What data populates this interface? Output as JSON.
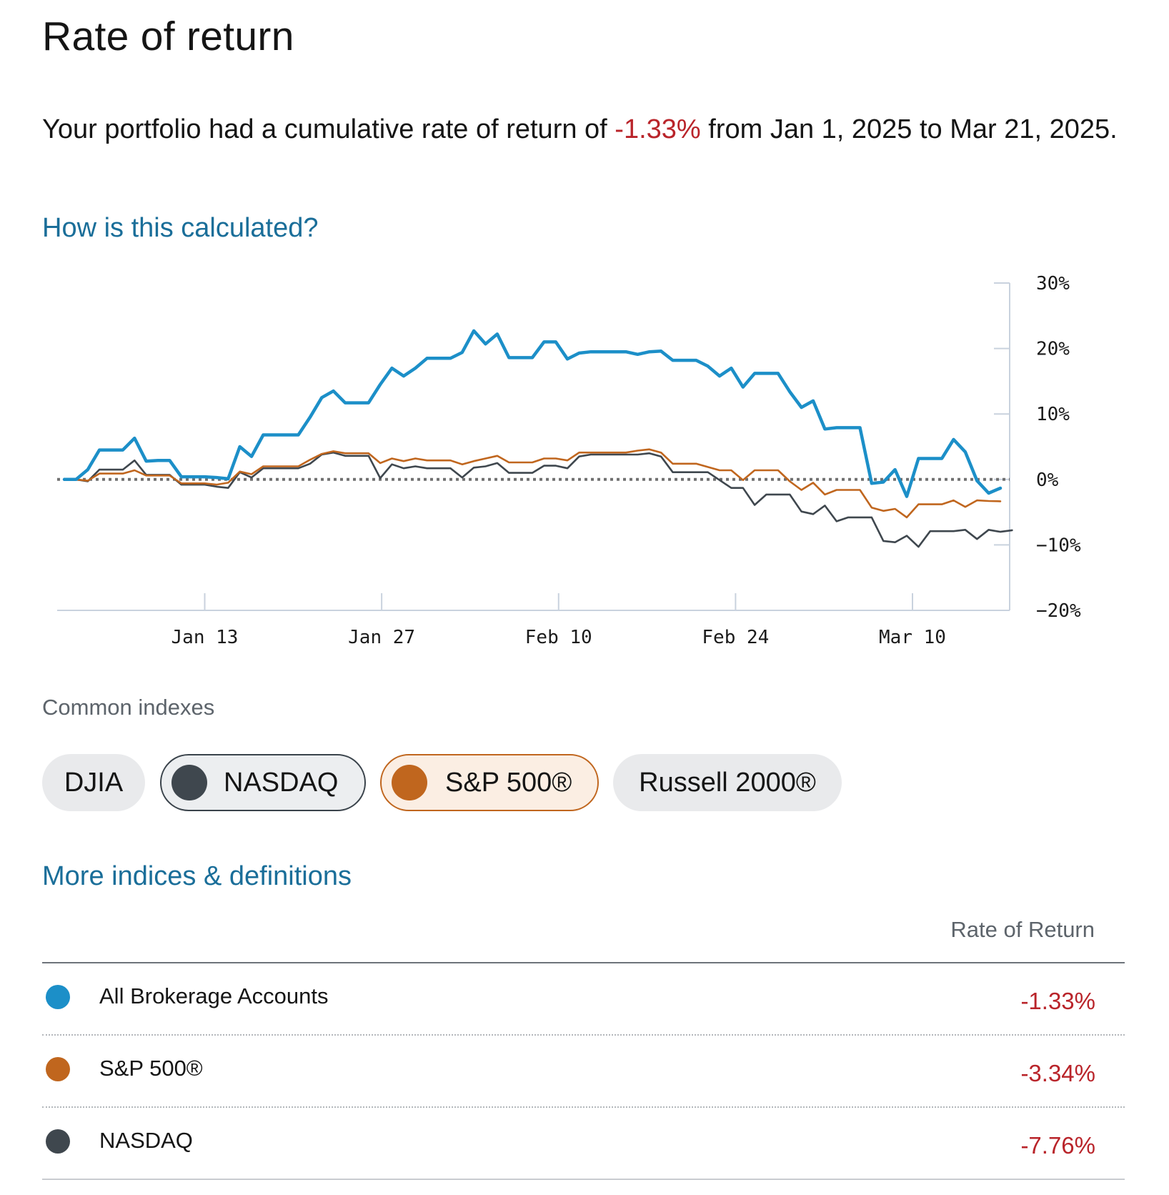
{
  "header": {
    "title": "Rate of return",
    "summary_pre": "Your portfolio had a cumulative rate of return of ",
    "summary_value": "-1.33%",
    "summary_post": " from Jan 1, 2025 to Mar 21, 2025.",
    "calc_link": "How is this calculated?"
  },
  "chart_data": {
    "type": "line",
    "x_ticks": [
      "Jan 13",
      "Jan 27",
      "Feb 10",
      "Feb 24",
      "Mar 10"
    ],
    "y_ticks": [
      "30%",
      "20%",
      "10%",
      "0%",
      "−10%",
      "−20%"
    ],
    "ylim": [
      -20,
      30
    ],
    "grid": false,
    "baseline": 0,
    "series": [
      {
        "name": "All Brokerage Accounts",
        "color": "#1c8fc8",
        "values": [
          0,
          0,
          1.5,
          4.5,
          4.5,
          4.5,
          6.3,
          2.8,
          2.9,
          2.9,
          0.4,
          0.4,
          0.4,
          0.3,
          0.1,
          5,
          3.5,
          6.8,
          6.8,
          6.8,
          6.8,
          9.5,
          12.5,
          13.5,
          11.7,
          11.7,
          11.7,
          14.5,
          17,
          15.8,
          17,
          18.5,
          18.5,
          18.5,
          19.4,
          22.7,
          20.7,
          22.2,
          18.6,
          18.6,
          18.6,
          21,
          21,
          18.4,
          19.3,
          19.5,
          19.5,
          19.5,
          19.5,
          19.1,
          19.5,
          19.6,
          18.2,
          18.2,
          18.2,
          17.3,
          15.8,
          17,
          14.1,
          16.2,
          16.2,
          16.2,
          13.4,
          11,
          12,
          7.7,
          7.9,
          7.9,
          7.9,
          -0.6,
          -0.4,
          1.5,
          -2.6,
          3.2,
          3.2,
          3.2,
          6.1,
          4.2,
          -0.2,
          -2.1,
          -1.33
        ]
      },
      {
        "name": "S&P 500®",
        "color": "#c0661e",
        "values": [
          0,
          0,
          -0.2,
          0.9,
          0.9,
          0.9,
          1.4,
          0.6,
          0.6,
          0.6,
          -0.6,
          -0.6,
          -0.6,
          -0.8,
          -0.5,
          1.2,
          0.8,
          2,
          2,
          2,
          2,
          3,
          3.9,
          4.3,
          4,
          4,
          4,
          2.5,
          3.2,
          2.8,
          3.2,
          2.9,
          2.9,
          2.9,
          2.3,
          2.8,
          3.2,
          3.6,
          2.6,
          2.6,
          2.6,
          3.2,
          3.2,
          2.9,
          4.1,
          4.1,
          4.1,
          4.1,
          4.1,
          4.4,
          4.6,
          4.1,
          2.4,
          2.4,
          2.4,
          1.9,
          1.4,
          1.4,
          -0.1,
          1.4,
          1.4,
          1.4,
          -0.3,
          -1.6,
          -0.5,
          -2.3,
          -1.6,
          -1.6,
          -1.6,
          -4.3,
          -4.8,
          -4.5,
          -5.8,
          -3.8,
          -3.8,
          -3.8,
          -3.2,
          -4.2,
          -3.2,
          -3.3,
          -3.34
        ]
      },
      {
        "name": "NASDAQ",
        "color": "#3f474e",
        "values": [
          0,
          0,
          -0.3,
          1.5,
          1.5,
          1.5,
          2.9,
          0.7,
          0.7,
          0.7,
          -0.8,
          -0.8,
          -0.8,
          -1.1,
          -1.3,
          1.1,
          0.3,
          1.7,
          1.7,
          1.7,
          1.7,
          2.4,
          3.8,
          4.1,
          3.6,
          3.6,
          3.6,
          0.2,
          2.3,
          1.7,
          2,
          1.7,
          1.7,
          1.7,
          0.3,
          1.8,
          2,
          2.5,
          1,
          1,
          1,
          2.1,
          2.1,
          1.7,
          3.5,
          3.8,
          3.8,
          3.8,
          3.8,
          3.8,
          4,
          3.5,
          1.1,
          1.1,
          1.1,
          1.1,
          -0.1,
          -1.3,
          -1.3,
          -3.9,
          -2.3,
          -2.3,
          -2.3,
          -4.9,
          -5.3,
          -4,
          -6.4,
          -5.8,
          -5.8,
          -5.8,
          -9.4,
          -9.6,
          -8.6,
          -10.3,
          -7.9,
          -7.9,
          -7.9,
          -7.7,
          -9.1,
          -7.7,
          -8,
          -7.76
        ]
      }
    ]
  },
  "indexes": {
    "label": "Common indexes",
    "chips": [
      {
        "label": "DJIA",
        "selected": false
      },
      {
        "label": "NASDAQ",
        "selected": true,
        "color": "#3f474e"
      },
      {
        "label": "S&P 500®",
        "selected": true,
        "color": "#c0661e"
      },
      {
        "label": "Russell 2000®",
        "selected": false
      }
    ],
    "more_link": "More indices & definitions"
  },
  "table": {
    "column_header": "Rate of Return",
    "rows": [
      {
        "name": "All Brokerage Accounts",
        "value": "-1.33%",
        "color": "#1c8fc8"
      },
      {
        "name": "S&P 500®",
        "value": "-3.34%",
        "color": "#c0661e"
      },
      {
        "name": "NASDAQ",
        "value": "-7.76%",
        "color": "#3f474e"
      }
    ]
  }
}
